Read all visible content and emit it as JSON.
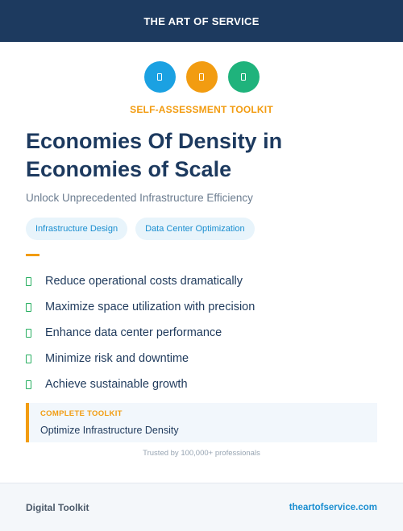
{
  "header": {
    "brand": "THE ART OF SERVICE"
  },
  "icons": [
    {
      "name": "blue-circle-icon",
      "color": "#1ba1e2"
    },
    {
      "name": "orange-circle-icon",
      "color": "#f29c11"
    },
    {
      "name": "green-circle-icon",
      "color": "#1fb37c"
    }
  ],
  "kicker": "SELF-ASSESSMENT TOOLKIT",
  "title": "Economies Of Density in Economies of Scale",
  "subtitle": "Unlock Unprecedented Infrastructure Efficiency",
  "tags": [
    "Infrastructure Design",
    "Data Center Optimization"
  ],
  "bullets": [
    "Reduce operational costs dramatically",
    "Maximize space utilization with precision",
    "Enhance data center performance",
    "Minimize risk and downtime",
    "Achieve sustainable growth"
  ],
  "callout": {
    "label": "COMPLETE TOOLKIT",
    "value": "Optimize Infrastructure Density"
  },
  "trust": "Trusted by 100,000+ professionals",
  "footer": {
    "left": "Digital Toolkit",
    "right": "theartofservice.com"
  },
  "colors": {
    "navy": "#1d3a5f",
    "accent_orange": "#f29c11",
    "accent_blue": "#1a8ed0",
    "check_green": "#27ae60"
  }
}
